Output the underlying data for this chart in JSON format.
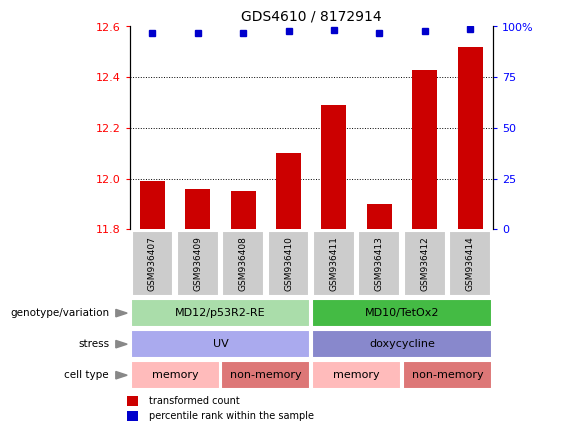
{
  "title": "GDS4610 / 8172914",
  "samples": [
    "GSM936407",
    "GSM936409",
    "GSM936408",
    "GSM936410",
    "GSM936411",
    "GSM936413",
    "GSM936412",
    "GSM936414"
  ],
  "bar_values": [
    11.99,
    11.96,
    11.95,
    12.1,
    12.29,
    11.9,
    12.43,
    12.52
  ],
  "dot_values": [
    97,
    97,
    97,
    97.5,
    98,
    97,
    97.5,
    98.5
  ],
  "ylim_left": [
    11.8,
    12.6
  ],
  "ylim_right": [
    0,
    100
  ],
  "yticks_left": [
    11.8,
    12.0,
    12.2,
    12.4,
    12.6
  ],
  "yticks_right": [
    0,
    25,
    50,
    75,
    100
  ],
  "bar_color": "#cc0000",
  "dot_color": "#0000cc",
  "background_color": "#ffffff",
  "genotype_labels": [
    {
      "text": "MD12/p53R2-RE",
      "start": 0,
      "end": 3,
      "color": "#aaddaa"
    },
    {
      "text": "MD10/TetOx2",
      "start": 4,
      "end": 7,
      "color": "#44bb44"
    }
  ],
  "stress_labels": [
    {
      "text": "UV",
      "start": 0,
      "end": 3,
      "color": "#aaaaee"
    },
    {
      "text": "doxycycline",
      "start": 4,
      "end": 7,
      "color": "#8888cc"
    }
  ],
  "celltype_labels": [
    {
      "text": "memory",
      "start": 0,
      "end": 1,
      "color": "#ffbbbb"
    },
    {
      "text": "non-memory",
      "start": 2,
      "end": 3,
      "color": "#dd7777"
    },
    {
      "text": "memory",
      "start": 4,
      "end": 5,
      "color": "#ffbbbb"
    },
    {
      "text": "non-memory",
      "start": 6,
      "end": 7,
      "color": "#dd7777"
    }
  ],
  "row_label_names": [
    "genotype/variation",
    "stress",
    "cell type"
  ],
  "legend_items": [
    {
      "label": "transformed count",
      "color": "#cc0000"
    },
    {
      "label": "percentile rank within the sample",
      "color": "#0000cc"
    }
  ],
  "grid_yticks": [
    12.0,
    12.2,
    12.4
  ],
  "bar_width": 0.55,
  "sample_box_color": "#cccccc",
  "arrow_color": "#888888"
}
